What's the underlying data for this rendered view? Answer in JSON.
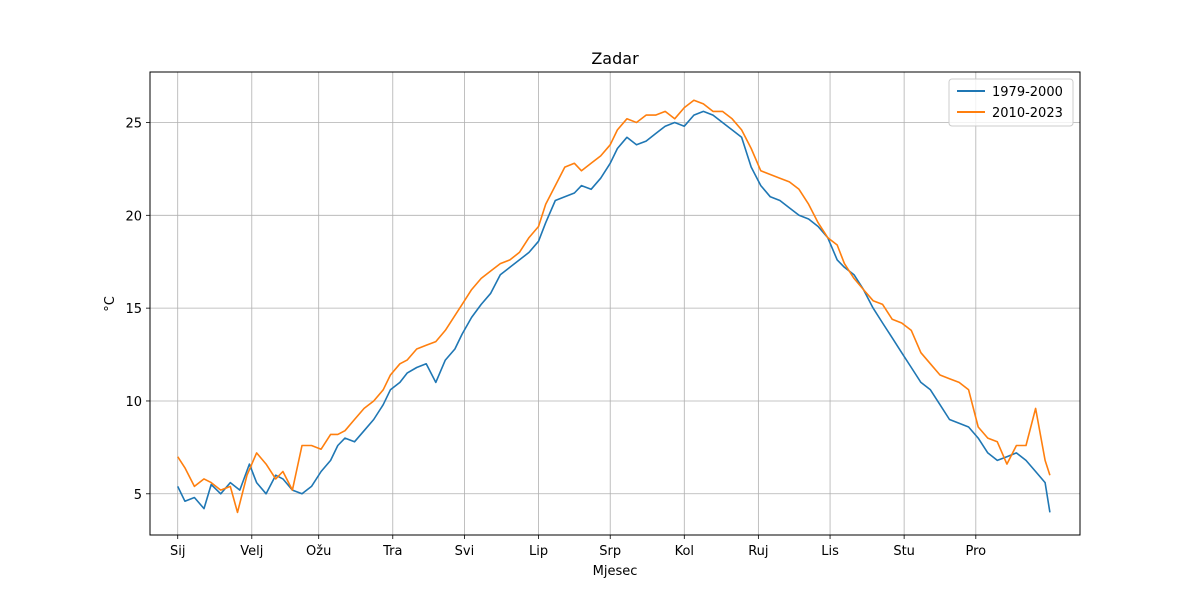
{
  "chart_data": {
    "type": "line",
    "title": "Zadar",
    "xlabel": "Mjesec",
    "ylabel": "°C",
    "xlim": [
      -11.6,
      377.6
    ],
    "ylim": [
      2.78,
      27.72
    ],
    "x_ticks": [
      {
        "day": 0,
        "label": "Sij"
      },
      {
        "day": 31,
        "label": "Velj"
      },
      {
        "day": 59,
        "label": "Ožu"
      },
      {
        "day": 90,
        "label": "Tra"
      },
      {
        "day": 120,
        "label": "Svi"
      },
      {
        "day": 151,
        "label": "Lip"
      },
      {
        "day": 181,
        "label": "Srp"
      },
      {
        "day": 212,
        "label": "Kol"
      },
      {
        "day": 243,
        "label": "Ruj"
      },
      {
        "day": 273,
        "label": "Lis"
      },
      {
        "day": 304,
        "label": "Stu"
      },
      {
        "day": 334,
        "label": "Pro"
      }
    ],
    "y_ticks": [
      5,
      10,
      15,
      20,
      25
    ],
    "grid": true,
    "legend_position": "upper right",
    "series": [
      {
        "name": "1979-2000",
        "color": "#1f77b4",
        "points": [
          [
            0,
            5.4
          ],
          [
            3,
            4.6
          ],
          [
            7,
            4.8
          ],
          [
            11,
            4.2
          ],
          [
            14,
            5.5
          ],
          [
            18,
            5.0
          ],
          [
            22,
            5.6
          ],
          [
            26,
            5.2
          ],
          [
            30,
            6.6
          ],
          [
            33,
            5.6
          ],
          [
            37,
            5.0
          ],
          [
            41,
            6.0
          ],
          [
            44,
            5.8
          ],
          [
            48,
            5.2
          ],
          [
            52,
            5.0
          ],
          [
            56,
            5.4
          ],
          [
            60,
            6.2
          ],
          [
            64,
            6.8
          ],
          [
            67,
            7.6
          ],
          [
            70,
            8.0
          ],
          [
            74,
            7.8
          ],
          [
            78,
            8.4
          ],
          [
            82,
            9.0
          ],
          [
            86,
            9.8
          ],
          [
            89,
            10.6
          ],
          [
            93,
            11.0
          ],
          [
            96,
            11.5
          ],
          [
            100,
            11.8
          ],
          [
            104,
            12.0
          ],
          [
            108,
            11.0
          ],
          [
            112,
            12.2
          ],
          [
            116,
            12.8
          ],
          [
            119,
            13.6
          ],
          [
            123,
            14.5
          ],
          [
            127,
            15.2
          ],
          [
            131,
            15.8
          ],
          [
            135,
            16.8
          ],
          [
            139,
            17.2
          ],
          [
            143,
            17.6
          ],
          [
            147,
            18.0
          ],
          [
            151,
            18.6
          ],
          [
            154,
            19.6
          ],
          [
            158,
            20.8
          ],
          [
            162,
            21.0
          ],
          [
            166,
            21.2
          ],
          [
            169,
            21.6
          ],
          [
            173,
            21.4
          ],
          [
            177,
            22.0
          ],
          [
            181,
            22.8
          ],
          [
            184,
            23.6
          ],
          [
            188,
            24.2
          ],
          [
            192,
            23.8
          ],
          [
            196,
            24.0
          ],
          [
            200,
            24.4
          ],
          [
            204,
            24.8
          ],
          [
            208,
            25.0
          ],
          [
            212,
            24.8
          ],
          [
            216,
            25.4
          ],
          [
            220,
            25.6
          ],
          [
            224,
            25.4
          ],
          [
            228,
            25.0
          ],
          [
            232,
            24.6
          ],
          [
            236,
            24.2
          ],
          [
            240,
            22.6
          ],
          [
            244,
            21.6
          ],
          [
            248,
            21.0
          ],
          [
            252,
            20.8
          ],
          [
            256,
            20.4
          ],
          [
            260,
            20.0
          ],
          [
            264,
            19.8
          ],
          [
            268,
            19.4
          ],
          [
            272,
            18.8
          ],
          [
            276,
            17.6
          ],
          [
            279,
            17.2
          ],
          [
            283,
            16.8
          ],
          [
            287,
            16.0
          ],
          [
            291,
            15.0
          ],
          [
            295,
            14.2
          ],
          [
            299,
            13.4
          ],
          [
            303,
            12.6
          ],
          [
            307,
            11.8
          ],
          [
            311,
            11.0
          ],
          [
            315,
            10.6
          ],
          [
            319,
            9.8
          ],
          [
            323,
            9.0
          ],
          [
            327,
            8.8
          ],
          [
            331,
            8.6
          ],
          [
            335,
            8.0
          ],
          [
            339,
            7.2
          ],
          [
            343,
            6.8
          ],
          [
            347,
            7.0
          ],
          [
            351,
            7.2
          ],
          [
            355,
            6.8
          ],
          [
            359,
            6.2
          ],
          [
            363,
            5.6
          ],
          [
            365,
            4.0
          ]
        ]
      },
      {
        "name": "2010-2023",
        "color": "#ff7f0e",
        "points": [
          [
            0,
            7.0
          ],
          [
            3,
            6.4
          ],
          [
            7,
            5.4
          ],
          [
            11,
            5.8
          ],
          [
            14,
            5.6
          ],
          [
            18,
            5.2
          ],
          [
            22,
            5.4
          ],
          [
            25,
            4.0
          ],
          [
            29,
            6.0
          ],
          [
            33,
            7.2
          ],
          [
            37,
            6.6
          ],
          [
            41,
            5.8
          ],
          [
            44,
            6.2
          ],
          [
            48,
            5.2
          ],
          [
            52,
            7.6
          ],
          [
            56,
            7.6
          ],
          [
            60,
            7.4
          ],
          [
            64,
            8.2
          ],
          [
            67,
            8.2
          ],
          [
            70,
            8.4
          ],
          [
            74,
            9.0
          ],
          [
            78,
            9.6
          ],
          [
            82,
            10.0
          ],
          [
            86,
            10.6
          ],
          [
            89,
            11.4
          ],
          [
            93,
            12.0
          ],
          [
            96,
            12.2
          ],
          [
            100,
            12.8
          ],
          [
            104,
            13.0
          ],
          [
            108,
            13.2
          ],
          [
            112,
            13.8
          ],
          [
            116,
            14.6
          ],
          [
            119,
            15.2
          ],
          [
            123,
            16.0
          ],
          [
            127,
            16.6
          ],
          [
            131,
            17.0
          ],
          [
            135,
            17.4
          ],
          [
            139,
            17.6
          ],
          [
            143,
            18.0
          ],
          [
            147,
            18.8
          ],
          [
            151,
            19.4
          ],
          [
            154,
            20.6
          ],
          [
            158,
            21.6
          ],
          [
            162,
            22.6
          ],
          [
            166,
            22.8
          ],
          [
            169,
            22.4
          ],
          [
            173,
            22.8
          ],
          [
            177,
            23.2
          ],
          [
            181,
            23.8
          ],
          [
            184,
            24.6
          ],
          [
            188,
            25.2
          ],
          [
            192,
            25.0
          ],
          [
            196,
            25.4
          ],
          [
            200,
            25.4
          ],
          [
            204,
            25.6
          ],
          [
            208,
            25.2
          ],
          [
            212,
            25.8
          ],
          [
            216,
            26.2
          ],
          [
            220,
            26.0
          ],
          [
            224,
            25.6
          ],
          [
            228,
            25.6
          ],
          [
            232,
            25.2
          ],
          [
            236,
            24.6
          ],
          [
            240,
            23.6
          ],
          [
            244,
            22.4
          ],
          [
            248,
            22.2
          ],
          [
            252,
            22.0
          ],
          [
            256,
            21.8
          ],
          [
            260,
            21.4
          ],
          [
            264,
            20.6
          ],
          [
            268,
            19.6
          ],
          [
            272,
            18.8
          ],
          [
            276,
            18.4
          ],
          [
            279,
            17.4
          ],
          [
            283,
            16.6
          ],
          [
            287,
            16.0
          ],
          [
            291,
            15.4
          ],
          [
            295,
            15.2
          ],
          [
            299,
            14.4
          ],
          [
            303,
            14.2
          ],
          [
            307,
            13.8
          ],
          [
            311,
            12.6
          ],
          [
            315,
            12.0
          ],
          [
            319,
            11.4
          ],
          [
            323,
            11.2
          ],
          [
            327,
            11.0
          ],
          [
            331,
            10.6
          ],
          [
            335,
            8.6
          ],
          [
            339,
            8.0
          ],
          [
            343,
            7.8
          ],
          [
            347,
            6.6
          ],
          [
            351,
            7.6
          ],
          [
            355,
            7.6
          ],
          [
            359,
            9.6
          ],
          [
            363,
            6.8
          ],
          [
            365,
            6.0
          ]
        ]
      }
    ]
  }
}
